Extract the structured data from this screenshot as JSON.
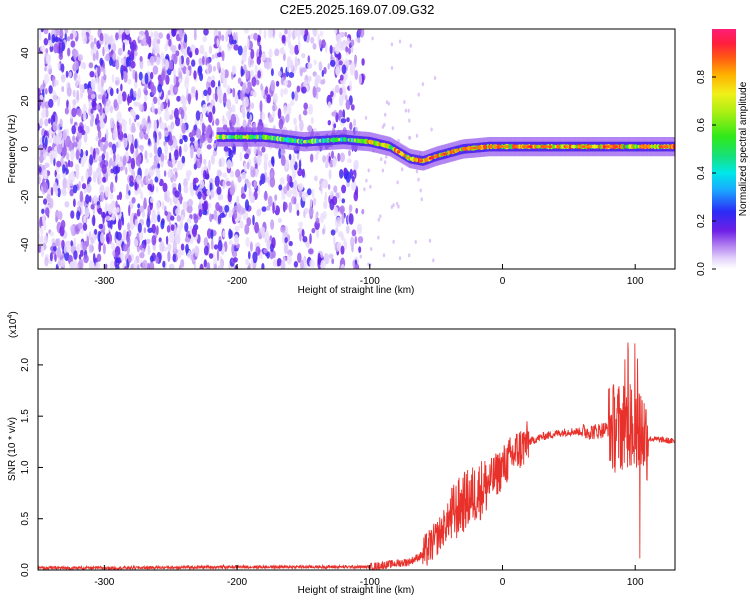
{
  "figure_title": "C2E5.2025.169.07.09.G32",
  "chart_data": [
    {
      "type": "heatmap",
      "title": "C2E5.2025.169.07.09.G32",
      "xlabel": "Height of straight line (km)",
      "ylabel": "Frequency (Hz)",
      "xlim": [
        -350,
        130
      ],
      "ylim": [
        -50,
        50
      ],
      "xticks": [
        -300,
        -200,
        -100,
        0,
        100
      ],
      "yticks": [
        -40,
        -20,
        0,
        20,
        40
      ],
      "colorbar": {
        "label": "Normalized spectral amplitude",
        "range": [
          0,
          1
        ],
        "ticks": [
          0.0,
          0.2,
          0.4,
          0.6,
          0.8
        ]
      },
      "ridge": {
        "description": "dominant frequency track (Hz) vs height (km)",
        "x": [
          -215,
          -180,
          -150,
          -120,
          -100,
          -85,
          -70,
          -60,
          -50,
          -30,
          -10,
          0,
          50,
          100,
          130
        ],
        "y": [
          5,
          5,
          3,
          4,
          3,
          1,
          -4,
          -5,
          -3,
          0,
          1,
          1,
          1,
          1,
          1
        ]
      }
    },
    {
      "type": "line",
      "xlabel": "Height of straight line (km)",
      "ylabel": "SNR (10 * v/v)",
      "y_exponent_label": "(x10",
      "y_exponent_power": "4",
      "y_exponent_close": ")",
      "xlim": [
        -350,
        130
      ],
      "ylim": [
        0,
        2.35
      ],
      "xticks": [
        -300,
        -200,
        -100,
        0,
        100
      ],
      "yticks": [
        0.0,
        0.5,
        1.0,
        1.5,
        2.0
      ],
      "series": [
        {
          "name": "SNR",
          "color": "#e8312b",
          "x": [
            -350,
            -300,
            -200,
            -100,
            -70,
            -60,
            -50,
            -40,
            -30,
            -20,
            -10,
            0,
            10,
            20,
            30,
            40,
            50,
            60,
            70,
            80,
            90,
            100,
            105,
            110,
            120,
            130
          ],
          "y": [
            0.02,
            0.02,
            0.03,
            0.03,
            0.08,
            0.15,
            0.3,
            0.5,
            0.65,
            0.75,
            0.85,
            1.0,
            1.15,
            1.25,
            1.3,
            1.33,
            1.35,
            1.35,
            1.35,
            1.38,
            1.4,
            1.45,
            1.35,
            1.28,
            1.27,
            1.25
          ]
        }
      ]
    }
  ]
}
